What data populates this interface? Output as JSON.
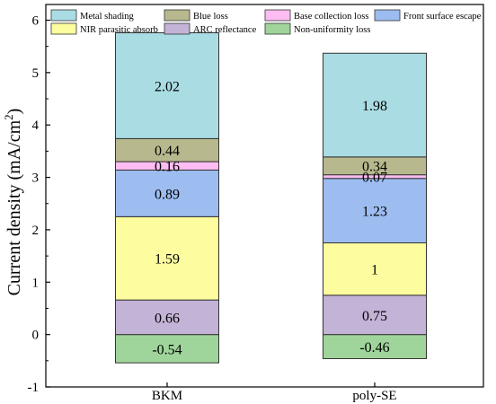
{
  "chart_data": {
    "type": "bar",
    "stacked": true,
    "categories": [
      "BKM",
      "poly-SE"
    ],
    "ylabel": "Current density (mA/cm",
    "ylabel_sup": "2",
    "ylabel_close": ")",
    "xlabel": "",
    "ylim": [
      -1,
      6.3
    ],
    "yticks": [
      -1,
      0,
      1,
      2,
      3,
      4,
      5,
      6
    ],
    "grid": false,
    "legend_position": "top",
    "series": [
      {
        "name": "Non-uniformity loss",
        "color": "#9fd59a",
        "values": [
          -0.54,
          -0.46
        ],
        "labels": [
          "-0.54",
          "-0.46"
        ]
      },
      {
        "name": "ARC reflectance",
        "color": "#c3b3d6",
        "values": [
          0.66,
          0.75
        ],
        "labels": [
          "0.66",
          "0.75"
        ]
      },
      {
        "name": "NIR parasitic absorb",
        "color": "#fdfd9f",
        "values": [
          1.59,
          1.0
        ],
        "labels": [
          "1.59",
          "1"
        ]
      },
      {
        "name": "Front surface escape",
        "color": "#9dbdf0",
        "values": [
          0.89,
          1.23
        ],
        "labels": [
          "0.89",
          "1.23"
        ]
      },
      {
        "name": "Base collection loss",
        "color": "#fdbdf2",
        "values": [
          0.16,
          0.07
        ],
        "labels": [
          "0.16",
          "0.07"
        ]
      },
      {
        "name": "Blue loss",
        "color": "#b8b88e",
        "values": [
          0.44,
          0.34
        ],
        "labels": [
          "0.44",
          "0.34"
        ]
      },
      {
        "name": "Metal shading",
        "color": "#a9dde3",
        "values": [
          2.02,
          1.98
        ],
        "labels": [
          "2.02",
          "1.98"
        ]
      }
    ],
    "legend_order": [
      "Metal shading",
      "Blue loss",
      "Base collection loss",
      "Front surface escape",
      "NIR parasitic absorb",
      "ARC reflectance",
      "Non-uniformity loss"
    ]
  }
}
